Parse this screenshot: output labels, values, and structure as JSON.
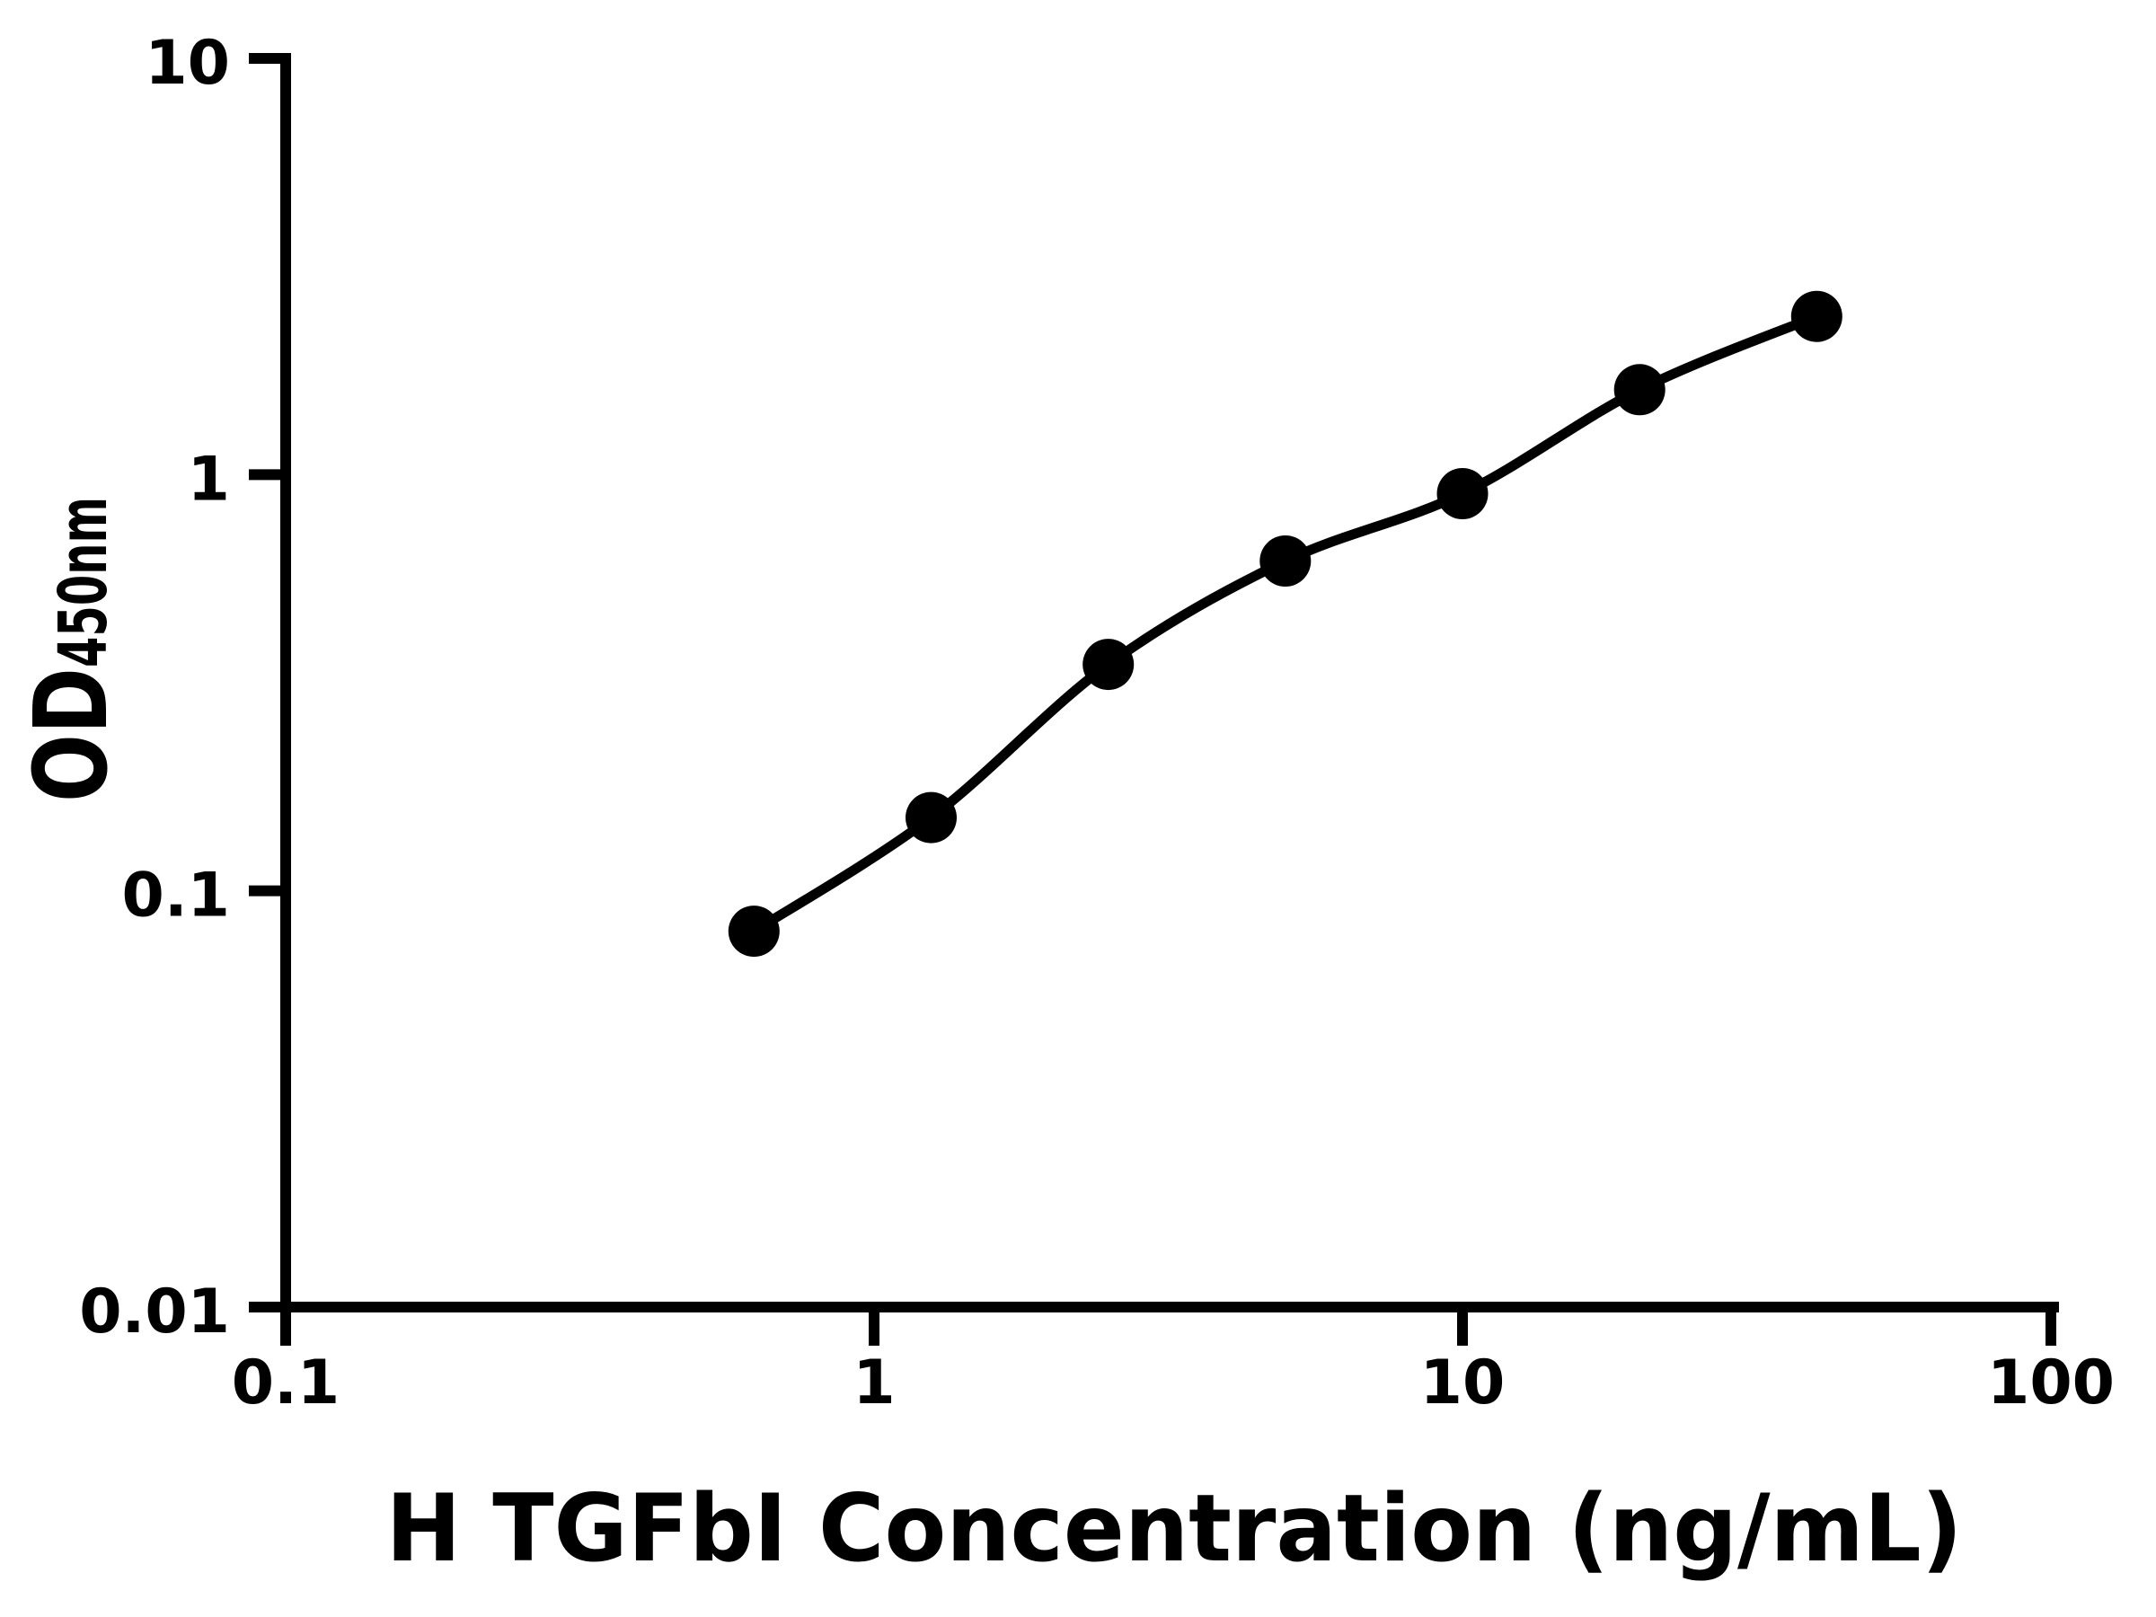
{
  "figure": {
    "background": "#ffffff",
    "ink_color": "#000000"
  },
  "chart_data": {
    "type": "scatter",
    "title": "",
    "xlabel": "H TGFbI Concentration (ng/mL)",
    "ylabel": {
      "full": "OD450nm",
      "main": "OD",
      "sub": "450nm"
    },
    "x_scale": "log10",
    "y_scale": "log10",
    "xlim": [
      0.1,
      100
    ],
    "ylim": [
      0.01,
      10
    ],
    "x_ticks": [
      "0.1",
      "1",
      "10",
      "100"
    ],
    "y_ticks": [
      "10",
      "1",
      "0.1",
      "0.01"
    ],
    "grid": false,
    "legend": "none",
    "marker": {
      "shape": "filled-circle",
      "color": "#000000"
    },
    "line": {
      "style": "smooth-fitted-curve",
      "color": "#000000"
    },
    "points": [
      {
        "x": 0.625,
        "y": 0.08
      },
      {
        "x": 1.25,
        "y": 0.15
      },
      {
        "x": 2.5,
        "y": 0.35
      },
      {
        "x": 5,
        "y": 0.62
      },
      {
        "x": 10,
        "y": 0.9
      },
      {
        "x": 20,
        "y": 1.6
      },
      {
        "x": 40,
        "y": 2.4
      }
    ]
  }
}
